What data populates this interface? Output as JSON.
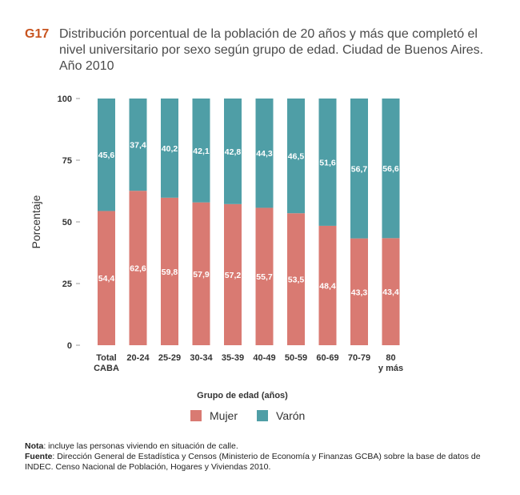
{
  "header": {
    "code": "G17",
    "title": "Distribución porcentual de la población de 20 años y más que completó el nivel universitario por sexo según grupo de edad. Ciudad de Buenos Aires. Año 2010"
  },
  "colors": {
    "mujer": "#d97a72",
    "varon": "#4f9ea6"
  },
  "chart_data": {
    "type": "bar",
    "stacked": true,
    "title": "Distribución porcentual de la población de 20 años y más que completó el nivel universitario por sexo según grupo de edad. Ciudad de Buenos Aires. Año 2010",
    "xlabel": "Grupo de edad (años)",
    "ylabel": "Porcentaje",
    "ylim": [
      0,
      100
    ],
    "yticks": [
      0,
      25,
      50,
      75,
      100
    ],
    "categories": [
      [
        "Total",
        "CABA"
      ],
      [
        "20-24"
      ],
      [
        "25-29"
      ],
      [
        "30-34"
      ],
      [
        "35-39"
      ],
      [
        "40-49"
      ],
      [
        "50-59"
      ],
      [
        "60-69"
      ],
      [
        "70-79"
      ],
      [
        "80",
        "y más"
      ]
    ],
    "series": [
      {
        "name": "Mujer",
        "values": [
          54.4,
          62.6,
          59.8,
          57.9,
          57.2,
          55.7,
          53.5,
          48.4,
          43.3,
          43.4
        ],
        "labels": [
          "54,4",
          "62,6",
          "59,8",
          "57,9",
          "57,2",
          "55,7",
          "53,5",
          "48,4",
          "43,3",
          "43,4"
        ]
      },
      {
        "name": "Varón",
        "values": [
          45.6,
          37.4,
          40.2,
          42.1,
          42.8,
          44.3,
          46.5,
          51.6,
          56.7,
          56.6
        ],
        "labels": [
          "45,6",
          "37,4",
          "40,2",
          "42,1",
          "42,8",
          "44,3",
          "46,5",
          "51,6",
          "56,7",
          "56,6"
        ]
      }
    ],
    "legend": [
      "Mujer",
      "Varón"
    ],
    "legend_position": "bottom"
  },
  "notes": {
    "nota_label": "Nota",
    "nota_text": ": incluye las personas viviendo en situación de calle.",
    "fuente_label": "Fuente",
    "fuente_text": ": Dirección General de Estadística y Censos (Ministerio de Economía y Finanzas GCBA) sobre la base de datos de INDEC. Censo Nacional de Población, Hogares y Viviendas 2010."
  }
}
